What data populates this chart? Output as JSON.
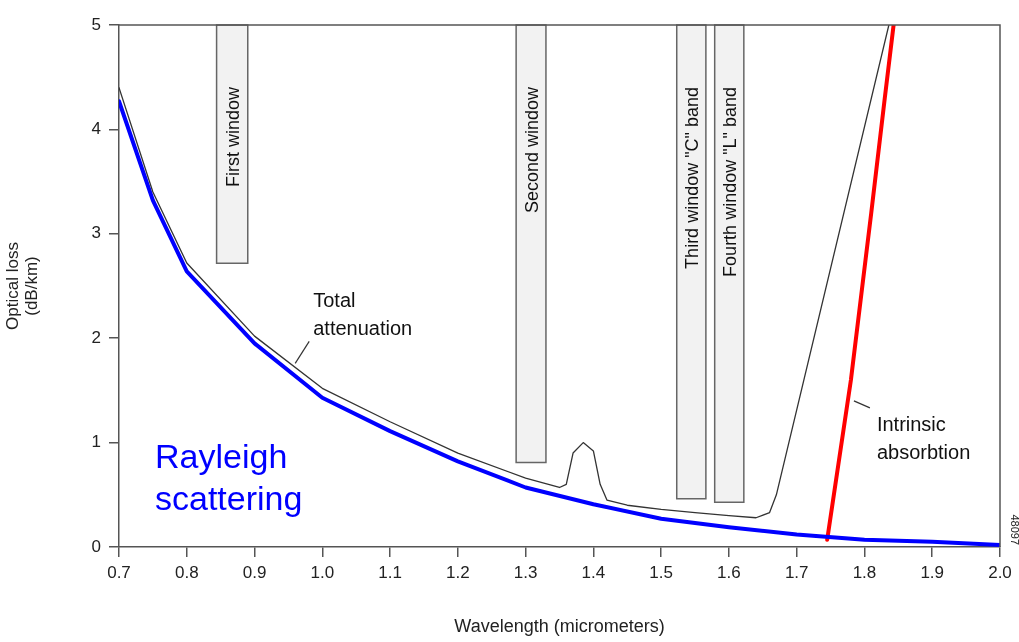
{
  "chart_data": {
    "type": "line",
    "xlabel": "Wavelength (micrometers)",
    "ylabel": "Optical loss\n(dB/km)",
    "xlim": [
      0.7,
      2.0
    ],
    "ylim": [
      0,
      5
    ],
    "xticks": [
      0.7,
      0.8,
      0.9,
      {
        "value": 1,
        "label": "1.0"
      },
      1.1,
      1.2,
      1.3,
      1.4,
      1.5,
      1.6,
      1.7,
      1.8,
      1.9,
      {
        "value": 2,
        "label": "2.0"
      }
    ],
    "yticks": [
      0,
      1,
      2,
      3,
      4,
      5
    ],
    "grid": false,
    "legend": false,
    "marker": "none",
    "line_style": "solid",
    "series": [
      {
        "name": "Total attenuation",
        "color": "#333333",
        "x": [
          0.7,
          0.75,
          0.8,
          0.9,
          1.0,
          1.1,
          1.2,
          1.3,
          1.35,
          1.36,
          1.37,
          1.385,
          1.4,
          1.41,
          1.42,
          1.45,
          1.5,
          1.55,
          1.6,
          1.64,
          1.66,
          1.67,
          1.836
        ],
        "values": [
          4.4,
          3.4,
          2.72,
          2.02,
          1.52,
          1.2,
          0.9,
          0.66,
          0.57,
          0.6,
          0.9,
          1.0,
          0.92,
          0.6,
          0.45,
          0.4,
          0.36,
          0.33,
          0.3,
          0.28,
          0.33,
          0.5,
          5
        ]
      },
      {
        "name": "Rayleigh scattering",
        "color": "#0000ff",
        "x": [
          0.7,
          0.75,
          0.8,
          0.9,
          1.0,
          1.1,
          1.2,
          1.3,
          1.4,
          1.5,
          1.6,
          1.7,
          1.8,
          1.9,
          2.0
        ],
        "values": [
          4.27,
          3.32,
          2.64,
          1.95,
          1.43,
          1.11,
          0.82,
          0.57,
          0.41,
          0.27,
          0.19,
          0.12,
          0.07,
          0.05,
          0.02
        ]
      },
      {
        "color": "#ff0000",
        "x": [
          1.745,
          1.78,
          1.81,
          1.83,
          1.843
        ],
        "values": [
          0.07,
          1.6,
          3.2,
          4.3,
          5
        ]
      }
    ],
    "bands": [
      {
        "axis": "x",
        "from": 0.844,
        "to": 0.89,
        "label": "First window",
        "color": "#f2f2f2"
      },
      {
        "axis": "x",
        "from": 1.286,
        "to": 1.33,
        "label": "Second window",
        "color": "#f2f2f2"
      },
      {
        "axis": "x",
        "from": 1.523,
        "to": 1.566,
        "label": "Third window \"C\" band",
        "color": "#f2f2f2"
      },
      {
        "axis": "x",
        "from": 1.579,
        "to": 1.622,
        "label": "Fourth window \"L\" band",
        "color": "#f2f2f2"
      }
    ],
    "annotations": [
      "48097",
      {
        "text": "Intrinsic\nabsorbtion",
        "x": 1.78,
        "y": 1.4
      }
    ]
  }
}
